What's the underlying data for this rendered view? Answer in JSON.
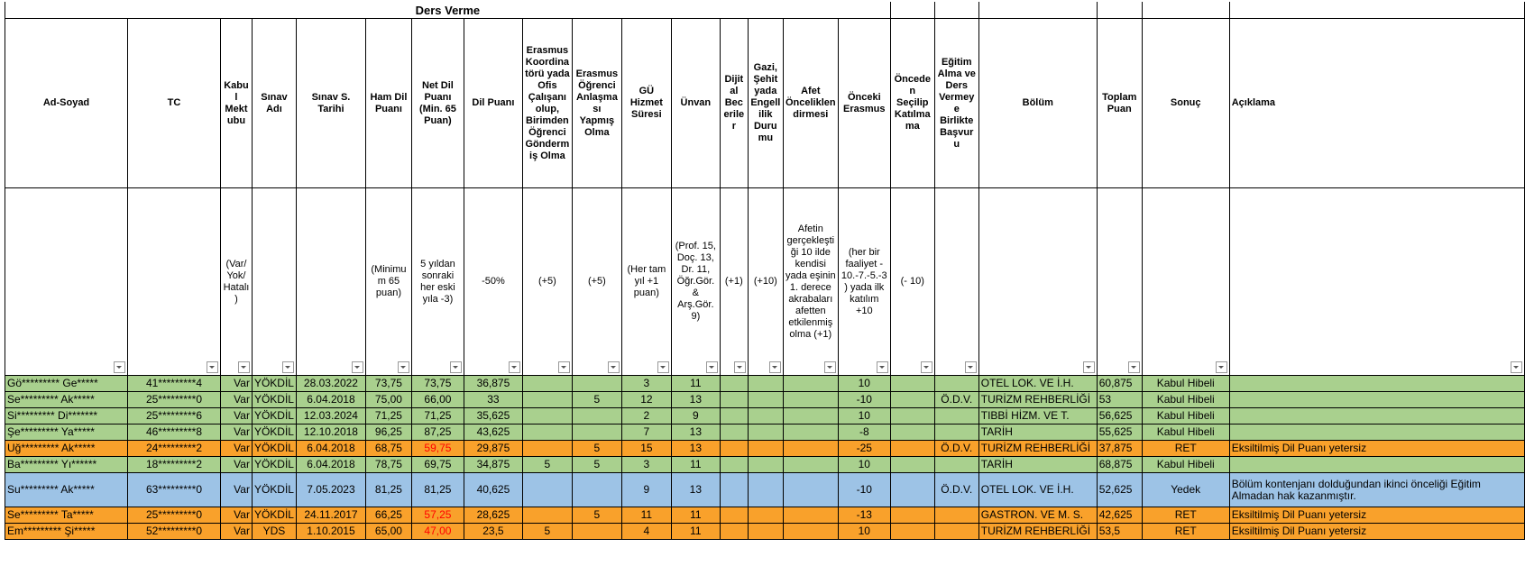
{
  "header": {
    "title": "Ders Verme"
  },
  "columns": [
    {
      "title": "Ad-Soyad",
      "sub": null,
      "width": 136,
      "align": "left"
    },
    {
      "title": "TC",
      "sub": null,
      "width": 103,
      "align": "center"
    },
    {
      "title": "Kabul Mektubu",
      "sub": "(Var/ Yok/ Hatalı)",
      "width": 35,
      "align": "right"
    },
    {
      "title": "Sınav Adı",
      "sub": null,
      "width": 45,
      "align": "center"
    },
    {
      "title": "Sınav S. Tarihi",
      "sub": null,
      "width": 77,
      "align": "center"
    },
    {
      "title": "Ham Dil Puanı",
      "sub": "(Minimum 65 puan)",
      "width": 51,
      "align": "center"
    },
    {
      "title": "Net Dil Puanı (Min. 65 Puan)",
      "sub": "5 yıldan sonraki her eski yıla -3)",
      "width": 58,
      "align": "center"
    },
    {
      "title": "Dil Puanı",
      "sub": "-50%",
      "width": 65,
      "align": "center"
    },
    {
      "title": "Erasmus Koordinatörü yada Ofis Çalışanı olup, Birimden Öğrenci Göndermiş Olma",
      "sub": "(+5)",
      "width": 55,
      "align": "center"
    },
    {
      "title": "Erasmus Öğrenci Anlaşması Yapmış Olma",
      "sub": "(+5)",
      "width": 55,
      "align": "center"
    },
    {
      "title": "GÜ Hizmet Süresi",
      "sub": "(Her tam yıl +1 puan)",
      "width": 55,
      "align": "center"
    },
    {
      "title": "Ünvan",
      "sub": "(Prof. 15, Doç. 13, Dr. 11, Öğr.Gör. & Arş.Gör. 9)",
      "width": 54,
      "align": "center"
    },
    {
      "title": "Dijital Beceriler",
      "sub": "(+1)",
      "width": 31,
      "align": "center"
    },
    {
      "title": "Gazi, Şehit yada Engellilik Durumu",
      "sub": "(+10)",
      "width": 39,
      "align": "center"
    },
    {
      "title": "Afet Önceliklendirmesi",
      "sub": "Afetin gerçekleştiği 10 ilde kendisi yada eşinin 1. derece akrabaları afetten etkilenmiş olma (+1)",
      "width": 61,
      "align": "center"
    },
    {
      "title": "Önceki Erasmus",
      "sub": "(her bir faaliyet - 10.-7.-5.-3) yada ilk katılım +10",
      "width": 58,
      "align": "center"
    },
    {
      "title": "Önceden Seçilip Katılmama",
      "sub": "(- 10)",
      "width": 49,
      "align": "center"
    },
    {
      "title": "Eğitim Alma ve Ders Vermeye Birlikte Başvuru",
      "sub": null,
      "width": 49,
      "align": "center"
    },
    {
      "title": "Bölüm",
      "sub": null,
      "width": 131,
      "align": "left"
    },
    {
      "title": "Toplam Puan",
      "sub": null,
      "width": 50,
      "align": "left"
    },
    {
      "title": "Sonuç",
      "sub": null,
      "width": 97,
      "align": "center"
    },
    {
      "title": "Açıklama",
      "sub": null,
      "width": 327,
      "align": "left"
    }
  ],
  "alert_color": "#ff0000",
  "rows": [
    {
      "color": "#a9d08e",
      "alert_cells": [],
      "cells": [
        "Gö********* Ge*****",
        "41*********4",
        "Var",
        "YÖKDİL",
        "28.03.2022",
        "73,75",
        "73,75",
        "36,875",
        null,
        null,
        "3",
        "11",
        null,
        null,
        null,
        "10",
        null,
        null,
        "OTEL LOK. VE İ.H.",
        "60,875",
        "Kabul Hibeli",
        null
      ]
    },
    {
      "color": "#a9d08e",
      "alert_cells": [],
      "cells": [
        "Se********* Ak*****",
        "25*********0",
        "Var",
        "YÖKDİL",
        "6.04.2018",
        "75,00",
        "66,00",
        "33",
        null,
        "5",
        "12",
        "13",
        null,
        null,
        null,
        "-10",
        null,
        "Ö.D.V.",
        "TURİZM REHBERLİĞİ",
        "53",
        "Kabul Hibeli",
        null
      ]
    },
    {
      "color": "#a9d08e",
      "alert_cells": [],
      "cells": [
        "Si********* Di*******",
        "25*********6",
        "Var",
        "YÖKDİL",
        "12.03.2024",
        "71,25",
        "71,25",
        "35,625",
        null,
        null,
        "2",
        "9",
        null,
        null,
        null,
        "10",
        null,
        null,
        "TIBBİ HİZM. VE T.",
        "56,625",
        "Kabul Hibeli",
        null
      ]
    },
    {
      "color": "#a9d08e",
      "alert_cells": [],
      "cells": [
        "Şe********* Ya*****",
        "46*********8",
        "Var",
        "YÖKDİL",
        "12.10.2018",
        "96,25",
        "87,25",
        "43,625",
        null,
        null,
        "7",
        "13",
        null,
        null,
        null,
        "-8",
        null,
        null,
        "TARİH",
        "55,625",
        "Kabul Hibeli",
        null
      ]
    },
    {
      "color": "#f9a12b",
      "alert_cells": [
        6
      ],
      "cells": [
        "Uğ********* Ak*****",
        "24*********2",
        "Var",
        "YÖKDİL",
        "6.04.2018",
        "68,75",
        "59,75",
        "29,875",
        null,
        "5",
        "15",
        "13",
        null,
        null,
        null,
        "-25",
        null,
        "Ö.D.V.",
        "TURİZM REHBERLİĞİ",
        "37,875",
        "RET",
        "Eksiltilmiş Dil Puanı yetersiz"
      ]
    },
    {
      "color": "#a9d08e",
      "alert_cells": [],
      "cells": [
        "Ba********* Yı******",
        "18*********2",
        "Var",
        "YÖKDİL",
        "6.04.2018",
        "78,75",
        "69,75",
        "34,875",
        "5",
        "5",
        "3",
        "11",
        null,
        null,
        null,
        "10",
        null,
        null,
        "TARİH",
        "68,875",
        "Kabul Hibeli",
        null
      ]
    },
    {
      "color": "#9dc3e6",
      "alert_cells": [],
      "cells": [
        "Su********* Ak*****",
        "63*********0",
        "Var",
        "YÖKDİL",
        "7.05.2023",
        "81,25",
        "81,25",
        "40,625",
        null,
        null,
        "9",
        "13",
        null,
        null,
        null,
        "-10",
        null,
        "Ö.D.V.",
        "OTEL LOK. VE İ.H.",
        "52,625",
        "Yedek",
        "Bölüm kontenjanı dolduğundan ikinci önceliği Eğitim Almadan hak kazanmıştır."
      ]
    },
    {
      "color": "#f9a12b",
      "alert_cells": [
        6
      ],
      "cells": [
        "Se********* Ta*****",
        "25*********0",
        "Var",
        "YÖKDİL",
        "24.11.2017",
        "66,25",
        "57,25",
        "28,625",
        null,
        "5",
        "11",
        "11",
        null,
        null,
        null,
        "-13",
        null,
        null,
        "GASTRON. VE M. S.",
        "42,625",
        "RET",
        "Eksiltilmiş Dil Puanı yetersiz"
      ]
    },
    {
      "color": "#f9a12b",
      "alert_cells": [
        6
      ],
      "cells": [
        "Em********* Şi*****",
        "52*********0",
        "Var",
        "YDS",
        "1.10.2015",
        "65,00",
        "47,00",
        "23,5",
        "5",
        null,
        "4",
        "11",
        null,
        null,
        null,
        "10",
        null,
        null,
        "TURİZM REHBERLİĞİ",
        "53,5",
        "RET",
        "Eksiltilmiş Dil Puanı yetersiz"
      ]
    }
  ]
}
